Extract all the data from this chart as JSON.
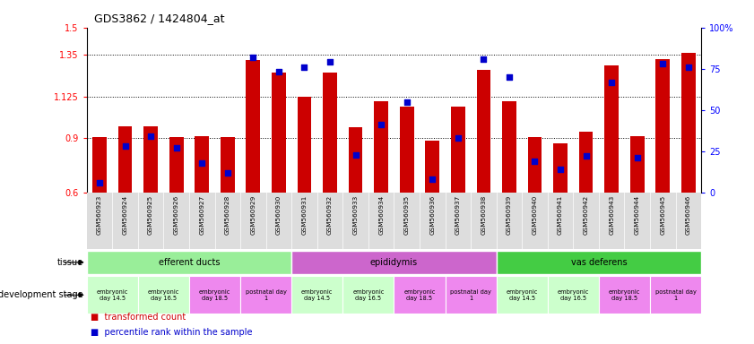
{
  "title": "GDS3862 / 1424804_at",
  "samples": [
    "GSM560923",
    "GSM560924",
    "GSM560925",
    "GSM560926",
    "GSM560927",
    "GSM560928",
    "GSM560929",
    "GSM560930",
    "GSM560931",
    "GSM560932",
    "GSM560933",
    "GSM560934",
    "GSM560935",
    "GSM560936",
    "GSM560937",
    "GSM560938",
    "GSM560939",
    "GSM560940",
    "GSM560941",
    "GSM560942",
    "GSM560943",
    "GSM560944",
    "GSM560945",
    "GSM560946"
  ],
  "bar_values": [
    0.905,
    0.96,
    0.96,
    0.905,
    0.91,
    0.905,
    1.325,
    1.255,
    1.125,
    1.255,
    0.955,
    1.1,
    1.07,
    0.885,
    1.07,
    1.27,
    1.1,
    0.905,
    0.87,
    0.93,
    1.295,
    0.91,
    1.33,
    1.36
  ],
  "percentile_values": [
    6,
    28,
    34,
    27,
    18,
    12,
    82,
    73,
    76,
    79,
    23,
    41,
    55,
    8,
    33,
    81,
    70,
    19,
    14,
    22,
    67,
    21,
    78,
    76
  ],
  "bar_color": "#cc0000",
  "dot_color": "#0000cc",
  "ylim_left": [
    0.6,
    1.5
  ],
  "ylim_right": [
    0,
    100
  ],
  "yticks_left": [
    0.6,
    0.9,
    1.125,
    1.35,
    1.5
  ],
  "ytick_labels_left": [
    "0.6",
    "0.9",
    "1.125",
    "1.35",
    "1.5"
  ],
  "yticks_right": [
    0,
    25,
    50,
    75,
    100
  ],
  "ytick_labels_right": [
    "0",
    "25",
    "50",
    "75",
    "100%"
  ],
  "hlines": [
    0.9,
    1.125,
    1.35
  ],
  "tissue_groups": [
    {
      "label": "efferent ducts",
      "start": 0,
      "end": 8,
      "color": "#99ee99"
    },
    {
      "label": "epididymis",
      "start": 8,
      "end": 16,
      "color": "#cc66cc"
    },
    {
      "label": "vas deferens",
      "start": 16,
      "end": 24,
      "color": "#44cc44"
    }
  ],
  "dev_stages": [
    {
      "label": "embryonic\nday 14.5",
      "start": 0,
      "end": 2,
      "color": "#ccffcc"
    },
    {
      "label": "embryonic\nday 16.5",
      "start": 2,
      "end": 4,
      "color": "#ccffcc"
    },
    {
      "label": "embryonic\nday 18.5",
      "start": 4,
      "end": 6,
      "color": "#ee88ee"
    },
    {
      "label": "postnatal day\n1",
      "start": 6,
      "end": 8,
      "color": "#ee88ee"
    },
    {
      "label": "embryonic\nday 14.5",
      "start": 8,
      "end": 10,
      "color": "#ccffcc"
    },
    {
      "label": "embryonic\nday 16.5",
      "start": 10,
      "end": 12,
      "color": "#ccffcc"
    },
    {
      "label": "embryonic\nday 18.5",
      "start": 12,
      "end": 14,
      "color": "#ee88ee"
    },
    {
      "label": "postnatal day\n1",
      "start": 14,
      "end": 16,
      "color": "#ee88ee"
    },
    {
      "label": "embryonic\nday 14.5",
      "start": 16,
      "end": 18,
      "color": "#ccffcc"
    },
    {
      "label": "embryonic\nday 16.5",
      "start": 18,
      "end": 20,
      "color": "#ccffcc"
    },
    {
      "label": "embryonic\nday 18.5",
      "start": 20,
      "end": 22,
      "color": "#ee88ee"
    },
    {
      "label": "postnatal day\n1",
      "start": 22,
      "end": 24,
      "color": "#ee88ee"
    }
  ],
  "background_color": "#ffffff",
  "plot_bg_color": "#ffffff",
  "xtick_bg_color": "#dddddd"
}
